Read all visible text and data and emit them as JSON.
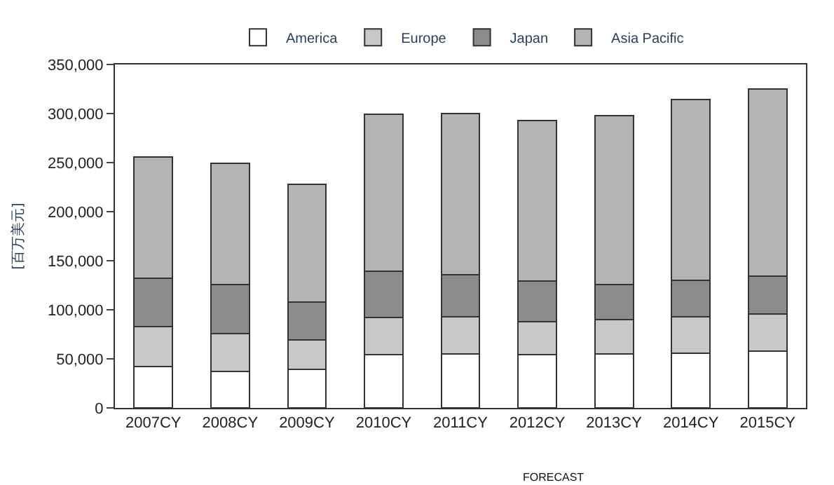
{
  "chart_data": {
    "type": "bar",
    "stacked": true,
    "ylabel": "[百万美元]",
    "categories": [
      "2007CY",
      "2008CY",
      "2009CY",
      "2010CY",
      "2011CY",
      "2012CY",
      "2013CY",
      "2014CY",
      "2015CY"
    ],
    "series": [
      {
        "name": "America",
        "color": "#ffffff",
        "values": [
          42000,
          37000,
          39000,
          54000,
          55000,
          54000,
          55000,
          56000,
          58000
        ]
      },
      {
        "name": "Europe",
        "color": "#c8c8c8",
        "values": [
          41000,
          39000,
          30000,
          38000,
          38000,
          34000,
          35000,
          37000,
          38000
        ]
      },
      {
        "name": "Japan",
        "color": "#8c8c8c",
        "values": [
          49000,
          50000,
          39000,
          47000,
          43000,
          41000,
          36000,
          37000,
          38000
        ]
      },
      {
        "name": "Asia Pacific",
        "color": "#b4b4b4",
        "values": [
          124000,
          123000,
          120000,
          160000,
          164000,
          164000,
          172000,
          184000,
          191000
        ]
      }
    ],
    "ylim": [
      0,
      350000
    ],
    "yticks": [
      {
        "value": 0,
        "label": "0"
      },
      {
        "value": 50000,
        "label": "50,000"
      },
      {
        "value": 100000,
        "label": "100,000"
      },
      {
        "value": 150000,
        "label": "150,000"
      },
      {
        "value": 200000,
        "label": "200,000"
      },
      {
        "value": 250000,
        "label": "250,000"
      },
      {
        "value": 300000,
        "label": "300,000"
      },
      {
        "value": 350000,
        "label": "350,000"
      }
    ],
    "legend": "top",
    "annotations": [
      "FORECAST"
    ]
  }
}
